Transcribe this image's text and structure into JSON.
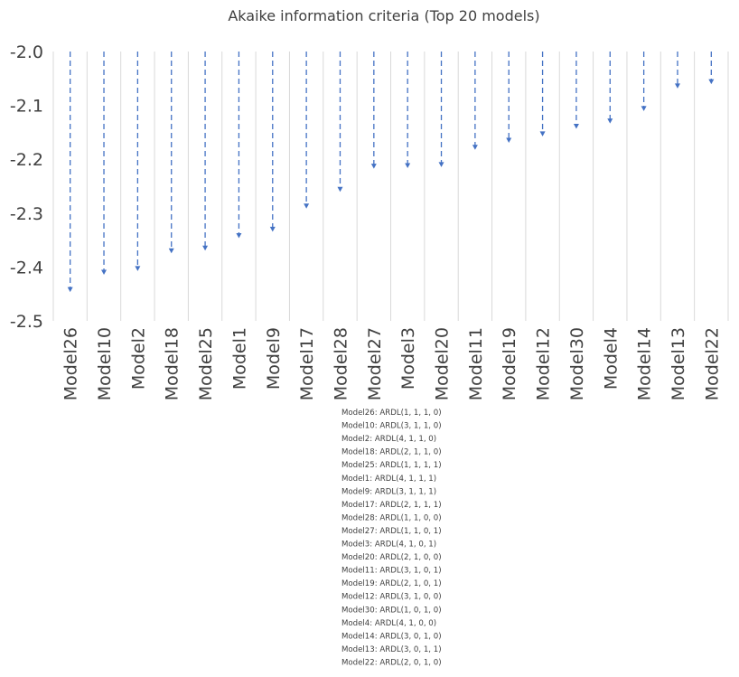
{
  "chart_data": {
    "type": "drop-line",
    "title": "Akaike information criteria (Top 20 models)",
    "xlabel": "",
    "ylabel": "",
    "categories": [
      "Model26",
      "Model10",
      "Model2",
      "Model18",
      "Model25",
      "Model1",
      "Model9",
      "Model17",
      "Model28",
      "Model27",
      "Model3",
      "Model20",
      "Model11",
      "Model19",
      "Model12",
      "Model30",
      "Model4",
      "Model14",
      "Model13",
      "Model22"
    ],
    "values": [
      -2.444,
      -2.412,
      -2.405,
      -2.372,
      -2.367,
      -2.344,
      -2.332,
      -2.289,
      -2.258,
      -2.215,
      -2.214,
      -2.212,
      -2.18,
      -2.167,
      -2.155,
      -2.141,
      -2.131,
      -2.108,
      -2.066,
      -2.058
    ],
    "ylim": [
      -2.5,
      -2.0
    ],
    "yticks": [
      "-2.0",
      "-2.1",
      "-2.2",
      "-2.3",
      "-2.4",
      "-2.5"
    ],
    "grid": "vertical",
    "series_color": "#4472C4",
    "model_notes": [
      "Model26: ARDL(1, 1, 1, 0)",
      "Model10: ARDL(3, 1, 1, 0)",
      "Model2: ARDL(4, 1, 1, 0)",
      "Model18: ARDL(2, 1, 1, 0)",
      "Model25: ARDL(1, 1, 1, 1)",
      "Model1: ARDL(4, 1, 1, 1)",
      "Model9: ARDL(3, 1, 1, 1)",
      "Model17: ARDL(2, 1, 1, 1)",
      "Model28: ARDL(1, 1, 0, 0)",
      "Model27: ARDL(1, 1, 0, 1)",
      "Model3: ARDL(4, 1, 0, 1)",
      "Model20: ARDL(2, 1, 0, 0)",
      "Model11: ARDL(3, 1, 0, 1)",
      "Model19: ARDL(2, 1, 0, 1)",
      "Model12: ARDL(3, 1, 0, 0)",
      "Model30: ARDL(1, 0, 1, 0)",
      "Model4: ARDL(4, 1, 0, 0)",
      "Model14: ARDL(3, 0, 1, 0)",
      "Model13: ARDL(3, 0, 1, 1)",
      "Model22: ARDL(2, 0, 1, 0)"
    ]
  }
}
